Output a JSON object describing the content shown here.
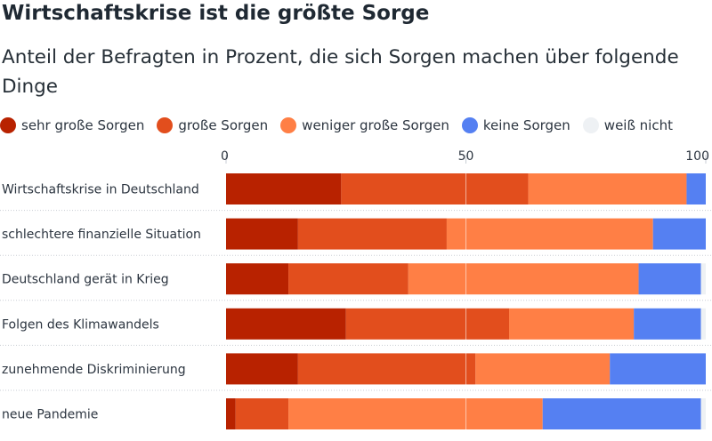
{
  "title": "Wirtschaftskrise ist die größte Sorge",
  "subtitle": "Anteil der Befragten in Prozent, die sich Sorgen machen über folgende Dinge",
  "chart_data": {
    "type": "bar",
    "orientation": "horizontal",
    "stacked": true,
    "categories": [
      "Wirtschaftskrise in Deutschland",
      "schlechtere finanzielle Situation",
      "Deutschland gerät in Krieg",
      "Folgen des Klimawandels",
      "zunehmende Diskriminierung",
      "neue Pandemie"
    ],
    "series": [
      {
        "name": "sehr große Sorgen",
        "color": "#b82200",
        "values": [
          24,
          15,
          13,
          25,
          15,
          2
        ]
      },
      {
        "name": "große Sorgen",
        "color": "#e24e1d",
        "values": [
          39,
          31,
          25,
          34,
          37,
          11
        ]
      },
      {
        "name": "weniger große Sorgen",
        "color": "#ff7f45",
        "values": [
          33,
          43,
          48,
          26,
          28,
          53
        ]
      },
      {
        "name": "keine Sorgen",
        "color": "#5580f2",
        "values": [
          4,
          11,
          13,
          14,
          20,
          33
        ]
      },
      {
        "name": "weiß nicht",
        "color": "#eef1f4",
        "values": [
          0,
          0,
          1,
          1,
          0,
          1
        ]
      }
    ],
    "xlim": [
      0,
      100
    ],
    "xticks": [
      0,
      50,
      100
    ],
    "grid": true,
    "legend": "top"
  }
}
